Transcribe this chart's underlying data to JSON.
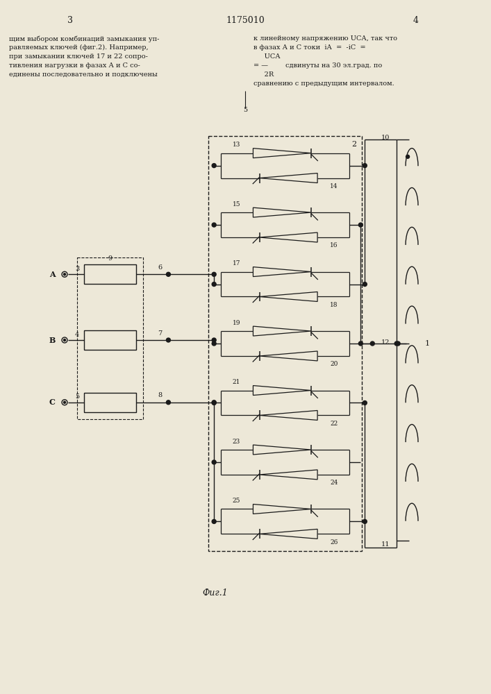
{
  "bg_color": "#ede8d8",
  "line_color": "#1a1a1a",
  "title": "1175010",
  "fig_label": "Фиг.1",
  "text_left": "щим выбором комбинаций замыкания уп-\nравляемых ключей (фиг.2). Например,\nпри замыкании ключей 17 и 22 сопро-\nтивления нагрузки в фазах А и С со-\nединены последовательно и подключены",
  "text_right": "к линейному напряжению U   , так что\nв фазах А и С токи  i   =  -i   =\n       U  \n        CA\n=  —         сдвинуты на 30 эл.град. по\n       2R\nсравнению с предыдущим интервалом.",
  "page3": "3",
  "page4": "4",
  "line5": "5"
}
